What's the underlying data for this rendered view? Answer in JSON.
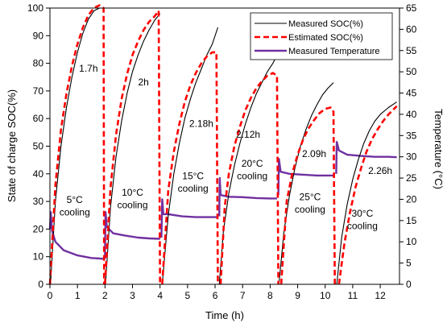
{
  "chart_data": {
    "type": "line",
    "xlabel": "Time (h)",
    "ylabel": "State of charge SOC(%)",
    "y2label": "Temperature (°C)",
    "xlim": [
      0,
      12.7
    ],
    "ylim": [
      0,
      100
    ],
    "y2lim": [
      0,
      65
    ],
    "xticks": [
      0,
      1,
      2,
      3,
      4,
      5,
      6,
      7,
      8,
      9,
      10,
      11,
      12
    ],
    "yticks": [
      0,
      10,
      20,
      30,
      40,
      50,
      60,
      70,
      80,
      90,
      100
    ],
    "y2ticks": [
      0,
      5,
      10,
      15,
      20,
      25,
      30,
      35,
      40,
      45,
      50,
      55,
      60,
      65
    ],
    "legend_position": "top-right",
    "series": [
      {
        "name": "Measured SOC(%)",
        "axis": "left",
        "color": "#000000",
        "style": "solid",
        "segments": [
          [
            [
              0.02,
              0
            ],
            [
              0.2,
              30
            ],
            [
              0.4,
              50
            ],
            [
              0.6,
              64
            ],
            [
              0.8,
              75
            ],
            [
              1.0,
              84
            ],
            [
              1.2,
              91
            ],
            [
              1.4,
              96
            ],
            [
              1.6,
              99
            ],
            [
              1.8,
              100
            ],
            [
              1.95,
              100
            ]
          ],
          [
            [
              2.02,
              0
            ],
            [
              2.2,
              28
            ],
            [
              2.4,
              46
            ],
            [
              2.6,
              59
            ],
            [
              2.8,
              69
            ],
            [
              3.0,
              77
            ],
            [
              3.2,
              83
            ],
            [
              3.4,
              88
            ],
            [
              3.6,
              92
            ],
            [
              3.8,
              95.5
            ],
            [
              4.0,
              98
            ]
          ],
          [
            [
              4.08,
              0
            ],
            [
              4.3,
              25
            ],
            [
              4.5,
              40
            ],
            [
              4.7,
              51
            ],
            [
              4.9,
              60
            ],
            [
              5.1,
              67
            ],
            [
              5.3,
              73
            ],
            [
              5.5,
              78
            ],
            [
              5.7,
              83
            ],
            [
              5.9,
              87
            ],
            [
              6.1,
              93
            ]
          ],
          [
            [
              6.15,
              0
            ],
            [
              6.3,
              19
            ],
            [
              6.5,
              33
            ],
            [
              6.7,
              43
            ],
            [
              6.9,
              51
            ],
            [
              7.1,
              58
            ],
            [
              7.3,
              64
            ],
            [
              7.5,
              69
            ],
            [
              7.7,
              73
            ],
            [
              7.9,
              77
            ],
            [
              8.1,
              80
            ],
            [
              8.25,
              83
            ]
          ],
          [
            [
              8.32,
              0
            ],
            [
              8.5,
              19
            ],
            [
              8.7,
              32
            ],
            [
              8.9,
              42
            ],
            [
              9.1,
              50
            ],
            [
              9.3,
              56
            ],
            [
              9.5,
              61
            ],
            [
              9.7,
              65
            ],
            [
              9.9,
              68.5
            ],
            [
              10.1,
              71
            ],
            [
              10.3,
              73
            ]
          ],
          [
            [
              10.42,
              0
            ],
            [
              10.6,
              17
            ],
            [
              10.8,
              29
            ],
            [
              11.0,
              38
            ],
            [
              11.2,
              45
            ],
            [
              11.4,
              51
            ],
            [
              11.6,
              55.5
            ],
            [
              11.8,
              59
            ],
            [
              12.0,
              61.5
            ],
            [
              12.3,
              64
            ],
            [
              12.6,
              66
            ]
          ]
        ]
      },
      {
        "name": "Estimated SOC(%)",
        "axis": "left",
        "color": "#ff0000",
        "style": "dashed",
        "segments": [
          [
            [
              0,
              0
            ],
            [
              0.2,
              36
            ],
            [
              0.4,
              56
            ],
            [
              0.6,
              69
            ],
            [
              0.8,
              79
            ],
            [
              1.0,
              87
            ],
            [
              1.2,
              93
            ],
            [
              1.4,
              97.5
            ],
            [
              1.6,
              100
            ],
            [
              1.8,
              101
            ],
            [
              1.95,
              100
            ],
            [
              1.97,
              0
            ]
          ],
          [
            [
              2.0,
              0
            ],
            [
              2.2,
              35
            ],
            [
              2.4,
              54
            ],
            [
              2.6,
              67
            ],
            [
              2.8,
              76
            ],
            [
              3.0,
              83
            ],
            [
              3.2,
              88
            ],
            [
              3.4,
              92
            ],
            [
              3.6,
              95
            ],
            [
              3.8,
              97
            ],
            [
              3.95,
              99
            ],
            [
              4.0,
              0
            ]
          ],
          [
            [
              4.08,
              0
            ],
            [
              4.3,
              34
            ],
            [
              4.5,
              48
            ],
            [
              4.7,
              58
            ],
            [
              4.9,
              66
            ],
            [
              5.1,
              72
            ],
            [
              5.3,
              76.5
            ],
            [
              5.5,
              80
            ],
            [
              5.7,
              82.5
            ],
            [
              5.9,
              84
            ],
            [
              6.05,
              84
            ],
            [
              6.1,
              0
            ]
          ],
          [
            [
              6.2,
              0
            ],
            [
              6.35,
              28
            ],
            [
              6.5,
              40
            ],
            [
              6.7,
              50
            ],
            [
              6.9,
              57
            ],
            [
              7.1,
              63
            ],
            [
              7.3,
              67.5
            ],
            [
              7.5,
              71
            ],
            [
              7.7,
              73.5
            ],
            [
              7.9,
              75.5
            ],
            [
              8.1,
              76.5
            ],
            [
              8.25,
              75.5
            ],
            [
              8.3,
              0
            ]
          ],
          [
            [
              8.4,
              0
            ],
            [
              8.6,
              30
            ],
            [
              8.8,
              40
            ],
            [
              9.0,
              47
            ],
            [
              9.2,
              52.5
            ],
            [
              9.4,
              56.5
            ],
            [
              9.6,
              59.5
            ],
            [
              9.8,
              62
            ],
            [
              10.0,
              63.5
            ],
            [
              10.2,
              64
            ],
            [
              10.3,
              62.5
            ],
            [
              10.35,
              0
            ]
          ],
          [
            [
              10.5,
              0
            ],
            [
              10.7,
              15
            ],
            [
              10.9,
              26
            ],
            [
              11.1,
              35
            ],
            [
              11.3,
              42
            ],
            [
              11.5,
              48
            ],
            [
              11.7,
              52.5
            ],
            [
              11.9,
              56
            ],
            [
              12.1,
              59
            ],
            [
              12.3,
              61.5
            ],
            [
              12.5,
              63.5
            ],
            [
              12.6,
              64.5
            ]
          ]
        ]
      },
      {
        "name": "Measured Temperature",
        "axis": "right",
        "color": "#7030a0",
        "style": "solid",
        "segments": [
          [
            [
              0,
              13
            ],
            [
              0.03,
              17
            ],
            [
              0.08,
              12.5
            ],
            [
              0.2,
              10
            ],
            [
              0.5,
              8
            ],
            [
              1.0,
              6.8
            ],
            [
              1.5,
              6.2
            ],
            [
              1.95,
              6
            ]
          ],
          [
            [
              2.0,
              6
            ],
            [
              2.02,
              17
            ],
            [
              2.07,
              13.5
            ],
            [
              2.3,
              12
            ],
            [
              2.7,
              11.5
            ],
            [
              3.2,
              11
            ],
            [
              3.6,
              10.8
            ],
            [
              4.0,
              10.7
            ]
          ],
          [
            [
              4.05,
              11
            ],
            [
              4.08,
              20
            ],
            [
              4.12,
              16.5
            ],
            [
              4.3,
              16.5
            ],
            [
              4.8,
              16
            ],
            [
              5.3,
              15.8
            ],
            [
              5.8,
              15.8
            ],
            [
              6.1,
              15.8
            ]
          ],
          [
            [
              6.15,
              16
            ],
            [
              6.17,
              25
            ],
            [
              6.2,
              21
            ],
            [
              6.5,
              20.6
            ],
            [
              7.0,
              20.5
            ],
            [
              7.5,
              20.3
            ],
            [
              8.0,
              20.2
            ],
            [
              8.25,
              20.2
            ]
          ],
          [
            [
              8.3,
              21
            ],
            [
              8.32,
              29.5
            ],
            [
              8.38,
              26.5
            ],
            [
              8.7,
              26
            ],
            [
              9.2,
              25.8
            ],
            [
              9.7,
              25.6
            ],
            [
              10.2,
              25.6
            ],
            [
              10.35,
              25.6
            ]
          ],
          [
            [
              10.4,
              26
            ],
            [
              10.42,
              33.5
            ],
            [
              10.5,
              31.5
            ],
            [
              10.8,
              30.5
            ],
            [
              11.3,
              30.2
            ],
            [
              11.8,
              30
            ],
            [
              12.3,
              30
            ],
            [
              12.6,
              29.9
            ]
          ]
        ]
      }
    ],
    "annotations": [
      {
        "text": "1.7h",
        "x": 1.4,
        "y": 77
      },
      {
        "text": "2h",
        "x": 3.4,
        "y": 72
      },
      {
        "text": "2.18h",
        "x": 5.5,
        "y": 57
      },
      {
        "text": "2.12h",
        "x": 7.2,
        "y": 53
      },
      {
        "text": "2.09h",
        "x": 9.6,
        "y": 46
      },
      {
        "text": "2.26h",
        "x": 12.0,
        "y": 40
      },
      {
        "text": "5°C",
        "x": 0.9,
        "y": 29.5
      },
      {
        "text": "cooling",
        "x": 0.9,
        "y": 25
      },
      {
        "text": "10°C",
        "x": 3.0,
        "y": 32
      },
      {
        "text": "cooling",
        "x": 3.0,
        "y": 27.5
      },
      {
        "text": "15°C",
        "x": 5.2,
        "y": 38
      },
      {
        "text": "cooling",
        "x": 5.2,
        "y": 33.5
      },
      {
        "text": "20°C",
        "x": 7.35,
        "y": 42.5
      },
      {
        "text": "cooling",
        "x": 7.35,
        "y": 38
      },
      {
        "text": "25°C",
        "x": 9.45,
        "y": 30.5
      },
      {
        "text": "cooling",
        "x": 9.45,
        "y": 26
      },
      {
        "text": "30°C",
        "x": 11.35,
        "y": 24.5
      },
      {
        "text": "cooling",
        "x": 11.35,
        "y": 20
      }
    ]
  }
}
